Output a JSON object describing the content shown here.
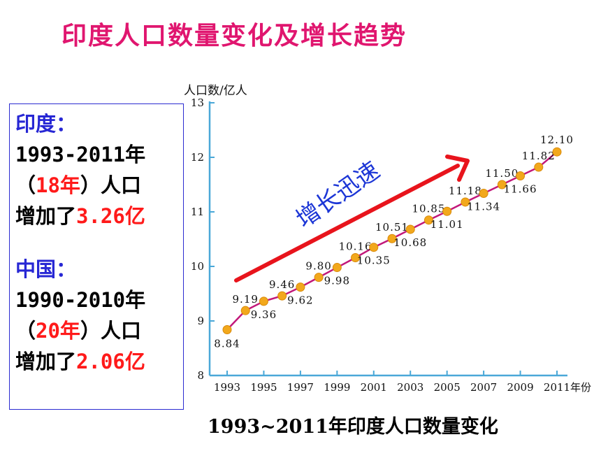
{
  "title": "印度人口数量变化及增长趋势",
  "info": {
    "india_head": "印度：",
    "india_years": "1993-2011年",
    "india_span_open": "（",
    "india_span": "18年",
    "india_span_close": "）人口",
    "india_increase_prefix": "增加了",
    "india_increase": "3.26亿",
    "china_head": "中国：",
    "china_years": "1990-2010年",
    "china_span_open": "（",
    "china_span": "20年",
    "china_span_close": "）人口",
    "china_increase_prefix": "增加了",
    "china_increase": "2.06亿"
  },
  "caption": "1993~2011年印度人口数量变化",
  "colors": {
    "title": "#e0166f",
    "box_border": "#2b2bd1",
    "box_head": "#2727d4",
    "highlight": "#ff1a1a",
    "line": "#c2187a",
    "marker": "#f2a81c",
    "axis": "#4aa8d8",
    "arrow": "#e8141c",
    "trend_text": "#1c36d6"
  },
  "chart_data": {
    "type": "line",
    "ylabel": "人口数/亿人",
    "xlabel": "年份",
    "x_tick_labels": [
      "1993",
      "1995",
      "1997",
      "1999",
      "2001",
      "2003",
      "2005",
      "2007",
      "2009",
      "2011"
    ],
    "y_tick_labels": [
      "8",
      "9",
      "10",
      "11",
      "12",
      "13"
    ],
    "xlim": [
      1993,
      2011
    ],
    "ylim": [
      8,
      13
    ],
    "x": [
      1993,
      1994,
      1995,
      1996,
      1997,
      1998,
      1999,
      2000,
      2001,
      2002,
      2003,
      2004,
      2005,
      2006,
      2007,
      2008,
      2009,
      2010,
      2011
    ],
    "values": [
      8.84,
      9.19,
      9.36,
      9.46,
      9.62,
      9.8,
      9.98,
      10.16,
      10.35,
      10.51,
      10.68,
      10.85,
      11.01,
      11.18,
      11.34,
      11.5,
      11.66,
      11.82,
      12.1
    ],
    "data_labels": [
      "8.84",
      "9.19",
      "9.36",
      "9.46",
      "9.62",
      "9.80",
      "9.98",
      "10.16",
      "10.35",
      "10.51",
      "10.68",
      "10.85",
      "11.01",
      "11.18",
      "11.34",
      "11.50",
      "11.66",
      "11.82",
      "12.10"
    ],
    "annotation": "增长迅速",
    "grid": false
  }
}
